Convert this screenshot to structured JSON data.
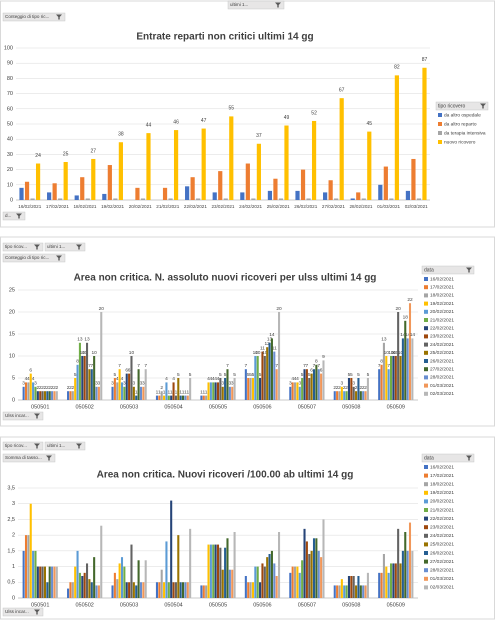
{
  "chart_data": [
    {
      "type": "bar",
      "title": "Entrate reparti non critici ultimi 14 gg",
      "controls": [
        "ultimi 1...",
        "Conteggio di tipo ric...",
        "d..."
      ],
      "legend_title": "tipo ricovero",
      "categories": [
        "16/02/2021",
        "17/02/2021",
        "18/02/2021",
        "19/02/2021",
        "20/02/2021",
        "21/02/2021",
        "22/02/2021",
        "23/02/2021",
        "24/02/2021",
        "25/02/2021",
        "26/02/2021",
        "27/02/2021",
        "28/02/2021",
        "01/03/2021",
        "02/03/2021"
      ],
      "series": [
        {
          "name": "da altro ospedale",
          "color": "#4472c4",
          "values": [
            8,
            5,
            3,
            4,
            0,
            0,
            9,
            5,
            5,
            6,
            6,
            5,
            1,
            10,
            6
          ]
        },
        {
          "name": "da altro reparto",
          "color": "#ed7d31",
          "values": [
            12,
            11,
            15,
            23,
            8,
            8,
            15,
            19,
            24,
            14,
            20,
            13,
            5,
            22,
            27
          ]
        },
        {
          "name": "da terapia intensiva",
          "color": "#a5a5a5",
          "values": [
            1,
            1,
            1,
            1,
            1,
            1,
            1,
            1,
            1,
            1,
            1,
            1,
            1,
            1,
            1
          ]
        },
        {
          "name": "nuovo ricovero",
          "color": "#ffc000",
          "labels": true,
          "values": [
            24,
            25,
            27,
            38,
            44,
            46,
            47,
            55,
            37,
            49,
            52,
            67,
            45,
            82,
            87
          ]
        }
      ],
      "ylim": [
        0,
        100
      ],
      "yticks": [
        0,
        10,
        20,
        30,
        40,
        50,
        60,
        70,
        80,
        90,
        100
      ],
      "grid": true
    },
    {
      "type": "bar",
      "title": "Area non critica. N. assoluto nuovi ricoveri  per ulss ultimi 14 gg",
      "controls": [
        "tipo ricov...",
        "ultimi 1...",
        "Conteggio di tipo ric...",
        "Ulss incar..."
      ],
      "legend_title": "data",
      "categories": [
        "050501",
        "050502",
        "050503",
        "050504",
        "050505",
        "050506",
        "050507",
        "050508",
        "050509"
      ],
      "series": [
        {
          "name": "16/02/2021",
          "color": "#4472c4",
          "labels": true,
          "values": [
            3,
            2,
            3,
            1,
            1,
            7,
            3,
            2,
            7
          ]
        },
        {
          "name": "17/02/2021",
          "color": "#ed7d31",
          "labels": true,
          "values": [
            4,
            2,
            5,
            1,
            1,
            5,
            4,
            2,
            8
          ]
        },
        {
          "name": "18/02/2021",
          "color": "#a5a5a5",
          "labels": true,
          "values": [
            4,
            2,
            4,
            2,
            1,
            5,
            4,
            2,
            13
          ]
        },
        {
          "name": "19/02/2021",
          "color": "#ffc000",
          "labels": true,
          "values": [
            6,
            5,
            7,
            1,
            4,
            5,
            4,
            3,
            10
          ]
        },
        {
          "name": "20/02/2021",
          "color": "#5b9bd5",
          "labels": true,
          "values": [
            4,
            8,
            4,
            4,
            4,
            10,
            3,
            2,
            7
          ]
        },
        {
          "name": "21/02/2021",
          "color": "#70ad47",
          "labels": true,
          "values": [
            3,
            13,
            3,
            1,
            4,
            10,
            5,
            2,
            10
          ]
        },
        {
          "name": "22/02/2021",
          "color": "#264478",
          "labels": true,
          "values": [
            2,
            10,
            6,
            1,
            4,
            5,
            7,
            5,
            10
          ]
        },
        {
          "name": "23/02/2021",
          "color": "#9e480e",
          "labels": true,
          "values": [
            2,
            10,
            6,
            4,
            4,
            11,
            7,
            5,
            10
          ]
        },
        {
          "name": "24/02/2021",
          "color": "#636363",
          "labels": true,
          "values": [
            2,
            13,
            10,
            1,
            5,
            10,
            5,
            3,
            20
          ]
        },
        {
          "name": "25/02/2021",
          "color": "#997300",
          "labels": true,
          "values": [
            2,
            7,
            3,
            5,
            3,
            12,
            6,
            2,
            10
          ]
        },
        {
          "name": "26/02/2021",
          "color": "#255e91",
          "labels": true,
          "values": [
            2,
            7,
            1,
            1,
            5,
            13,
            7,
            5,
            14
          ]
        },
        {
          "name": "27/02/2021",
          "color": "#43682b",
          "labels": true,
          "values": [
            2,
            10,
            7,
            1,
            7,
            14,
            8,
            2,
            18
          ]
        },
        {
          "name": "28/02/2021",
          "color": "#698ed0",
          "labels": true,
          "values": [
            2,
            3,
            3,
            1,
            3,
            11,
            7,
            2,
            14
          ]
        },
        {
          "name": "01/03/2021",
          "color": "#f1975a",
          "labels": true,
          "values": [
            2,
            3,
            3,
            1,
            3,
            7,
            6,
            2,
            22
          ]
        },
        {
          "name": "02/03/2021",
          "color": "#b7b7b7",
          "labels": true,
          "values": [
            2,
            20,
            7,
            5,
            5,
            20,
            9,
            5,
            14
          ]
        }
      ],
      "ylim": [
        0,
        25
      ],
      "yticks": [
        0,
        5,
        10,
        15,
        20,
        25
      ],
      "grid": true
    },
    {
      "type": "bar",
      "title": "Area non critica. Nuovi ricoveri /100.00 ab ultimi 14 gg",
      "controls": [
        "tipo ricov...",
        "ultimi 1...",
        "Somma di tasso...",
        "Ulss incar..."
      ],
      "legend_title": "data",
      "categories": [
        "050501",
        "050502",
        "050503",
        "050504",
        "050505",
        "050506",
        "050507",
        "050508",
        "050509"
      ],
      "series": [
        {
          "name": "16/02/2021",
          "color": "#4472c4",
          "values": [
            1.5,
            0.3,
            0.4,
            0.5,
            0.4,
            0.7,
            0.8,
            0.4,
            0.8
          ]
        },
        {
          "name": "17/02/2021",
          "color": "#ed7d31",
          "values": [
            2.0,
            0.5,
            0.8,
            0.5,
            0.4,
            0.5,
            1.0,
            0.4,
            0.8
          ]
        },
        {
          "name": "18/02/2021",
          "color": "#a5a5a5",
          "values": [
            2.0,
            0.5,
            0.6,
            0.9,
            0.4,
            0.5,
            1.0,
            0.4,
            1.4
          ]
        },
        {
          "name": "19/02/2021",
          "color": "#ffc000",
          "values": [
            3.0,
            1.0,
            1.1,
            0.5,
            1.7,
            0.5,
            1.0,
            0.6,
            1.0
          ]
        },
        {
          "name": "20/02/2021",
          "color": "#5b9bd5",
          "values": [
            1.5,
            1.5,
            1.3,
            1.8,
            1.7,
            1.0,
            0.8,
            0.4,
            0.8
          ]
        },
        {
          "name": "21/02/2021",
          "color": "#70ad47",
          "values": [
            1.5,
            0.8,
            1.0,
            0.5,
            1.7,
            1.0,
            1.2,
            0.4,
            1.1
          ]
        },
        {
          "name": "22/02/2021",
          "color": "#264478",
          "values": [
            1.0,
            0.7,
            0.5,
            3.1,
            1.7,
            0.5,
            2.2,
            0.7,
            1.1
          ]
        },
        {
          "name": "23/02/2021",
          "color": "#9e480e",
          "values": [
            1.0,
            0.8,
            0.5,
            0.5,
            1.7,
            1.1,
            1.8,
            0.7,
            1.1
          ]
        },
        {
          "name": "24/02/2021",
          "color": "#636363",
          "values": [
            1.0,
            1.1,
            1.7,
            0.5,
            1.6,
            1.0,
            1.4,
            0.7,
            2.2
          ]
        },
        {
          "name": "25/02/2021",
          "color": "#997300",
          "values": [
            1.0,
            0.6,
            0.5,
            2.0,
            0.9,
            1.3,
            1.5,
            0.4,
            1.1
          ]
        },
        {
          "name": "26/02/2021",
          "color": "#255e91",
          "values": [
            0.5,
            0.5,
            0.4,
            0.5,
            1.6,
            1.4,
            1.9,
            0.7,
            1.5
          ]
        },
        {
          "name": "27/02/2021",
          "color": "#43682b",
          "values": [
            1.0,
            1.3,
            1.2,
            0.5,
            1.9,
            1.5,
            1.9,
            0.4,
            2.1
          ]
        },
        {
          "name": "28/02/2021",
          "color": "#698ed0",
          "values": [
            1.0,
            0.4,
            0.5,
            0.5,
            0.9,
            1.1,
            1.5,
            0.4,
            1.5
          ]
        },
        {
          "name": "01/03/2021",
          "color": "#f1975a",
          "values": [
            1.0,
            0.4,
            0.5,
            0.5,
            0.9,
            0.7,
            1.3,
            0.4,
            2.4
          ]
        },
        {
          "name": "02/03/2021",
          "color": "#b7b7b7",
          "values": [
            1.0,
            2.3,
            1.2,
            2.2,
            2.1,
            2.1,
            2.5,
            0.8,
            1.5
          ]
        }
      ],
      "ylim": [
        0,
        3.5
      ],
      "yticks": [
        0,
        {
          "value": 0.5,
          "label": "0,5"
        },
        1,
        {
          "value": 1.5,
          "label": "1,5"
        },
        2,
        {
          "value": 2.5,
          "label": "2,5"
        },
        3,
        {
          "value": 3.5,
          "label": "3,5"
        }
      ],
      "grid": true
    }
  ]
}
